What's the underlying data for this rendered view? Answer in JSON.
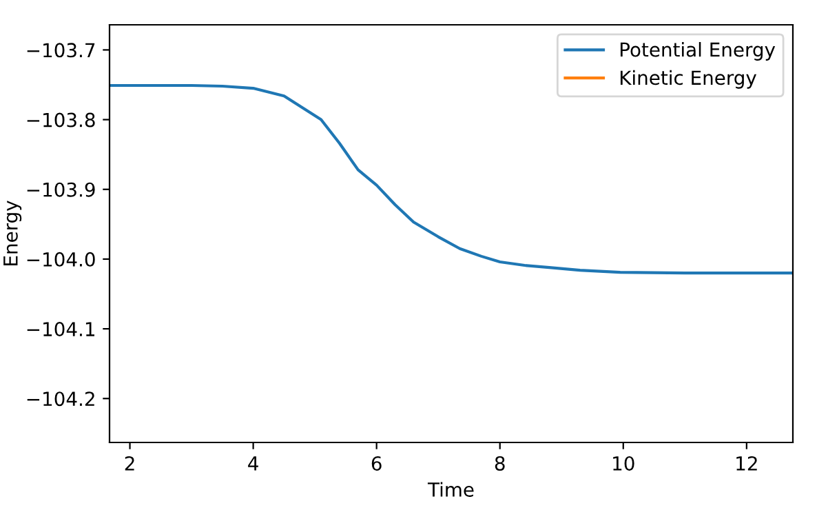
{
  "chart_data": {
    "type": "line",
    "xlabel": "Time",
    "ylabel": "Energy",
    "x": [
      1.67,
      3.0,
      3.5,
      4.0,
      4.5,
      5.1,
      5.4,
      5.7,
      6.0,
      6.3,
      6.6,
      7.0,
      7.35,
      7.7,
      8.0,
      8.4,
      8.8,
      9.3,
      9.95,
      11.0,
      12.75
    ],
    "series": [
      {
        "name": "Potential Energy",
        "color": "#1f77b4",
        "values": [
          -103.751,
          -103.751,
          -103.752,
          -103.755,
          -103.766,
          -103.8,
          -103.834,
          -103.872,
          -103.894,
          -103.922,
          -103.947,
          -103.968,
          -103.985,
          -103.996,
          -104.004,
          -104.009,
          -104.012,
          -104.016,
          -104.019,
          -104.02,
          -104.02
        ]
      },
      {
        "name": "Kinetic Energy",
        "color": "#ff7f0e",
        "values": [
          null,
          null,
          null,
          null,
          null,
          null,
          null,
          null,
          null,
          null,
          null,
          null,
          null,
          null,
          null,
          null,
          null,
          null,
          null,
          null,
          null
        ]
      }
    ],
    "xlim": [
      1.67,
      12.75
    ],
    "ylim": [
      -104.263,
      -103.664
    ],
    "xticks": [
      2,
      4,
      6,
      8,
      10,
      12
    ],
    "yticks": [
      {
        "value": -103.7,
        "label": "−103.7"
      },
      {
        "value": -103.8,
        "label": "−103.8"
      },
      {
        "value": -103.9,
        "label": "−103.9"
      },
      {
        "value": -104.0,
        "label": "−104.0"
      },
      {
        "value": -104.1,
        "label": "−104.1"
      },
      {
        "value": -104.2,
        "label": "−104.2"
      }
    ],
    "grid": false,
    "legend": "top right",
    "marker": "none",
    "line_style": "solid"
  }
}
